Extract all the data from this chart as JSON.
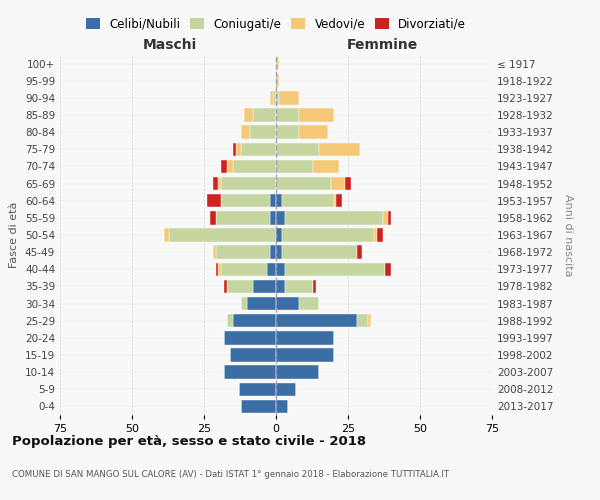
{
  "age_groups": [
    "0-4",
    "5-9",
    "10-14",
    "15-19",
    "20-24",
    "25-29",
    "30-34",
    "35-39",
    "40-44",
    "45-49",
    "50-54",
    "55-59",
    "60-64",
    "65-69",
    "70-74",
    "75-79",
    "80-84",
    "85-89",
    "90-94",
    "95-99",
    "100+"
  ],
  "birth_years": [
    "2013-2017",
    "2008-2012",
    "2003-2007",
    "1998-2002",
    "1993-1997",
    "1988-1992",
    "1983-1987",
    "1978-1982",
    "1973-1977",
    "1968-1972",
    "1963-1967",
    "1958-1962",
    "1953-1957",
    "1948-1952",
    "1943-1947",
    "1938-1942",
    "1933-1937",
    "1928-1932",
    "1923-1927",
    "1918-1922",
    "≤ 1917"
  ],
  "maschi": {
    "celibi": [
      12,
      13,
      18,
      16,
      18,
      15,
      10,
      8,
      3,
      2,
      0,
      2,
      2,
      0,
      0,
      0,
      0,
      0,
      0,
      0,
      0
    ],
    "coniugati": [
      0,
      0,
      0,
      0,
      0,
      2,
      2,
      9,
      16,
      19,
      37,
      19,
      17,
      19,
      15,
      12,
      9,
      8,
      1,
      0,
      0
    ],
    "vedovi": [
      0,
      0,
      0,
      0,
      0,
      0,
      0,
      0,
      1,
      1,
      2,
      0,
      0,
      1,
      2,
      2,
      3,
      3,
      1,
      0,
      0
    ],
    "divorziati": [
      0,
      0,
      0,
      0,
      0,
      0,
      0,
      1,
      1,
      0,
      0,
      2,
      5,
      2,
      2,
      1,
      0,
      0,
      0,
      0,
      0
    ]
  },
  "femmine": {
    "nubili": [
      4,
      7,
      15,
      20,
      20,
      28,
      8,
      3,
      3,
      2,
      2,
      3,
      2,
      0,
      0,
      0,
      0,
      0,
      0,
      0,
      0
    ],
    "coniugate": [
      0,
      0,
      0,
      0,
      0,
      4,
      7,
      10,
      35,
      26,
      32,
      34,
      18,
      19,
      13,
      15,
      8,
      8,
      1,
      0,
      0
    ],
    "vedove": [
      0,
      0,
      0,
      0,
      0,
      1,
      0,
      0,
      0,
      0,
      1,
      2,
      1,
      5,
      9,
      14,
      10,
      12,
      7,
      1,
      1
    ],
    "divorziate": [
      0,
      0,
      0,
      0,
      0,
      0,
      0,
      1,
      2,
      2,
      2,
      1,
      2,
      2,
      0,
      0,
      0,
      0,
      0,
      0,
      0
    ]
  },
  "colors": {
    "celibi": "#3A6EA5",
    "coniugati": "#C5D5A0",
    "vedovi": "#F5C878",
    "divorziati": "#CC2222"
  },
  "title": "Popolazione per età, sesso e stato civile - 2018",
  "subtitle": "COMUNE DI SAN MANGO SUL CALORE (AV) - Dati ISTAT 1° gennaio 2018 - Elaborazione TUTTITALIA.IT",
  "xlabel_left": "Maschi",
  "xlabel_right": "Femmine",
  "ylabel_left": "Fasce di età",
  "ylabel_right": "Anni di nascita",
  "xlim": 75,
  "bg_color": "#f8f8f8",
  "grid_color": "#cccccc",
  "legend_labels": [
    "Celibi/Nubili",
    "Coniugati/e",
    "Vedovi/e",
    "Divorziati/e"
  ]
}
